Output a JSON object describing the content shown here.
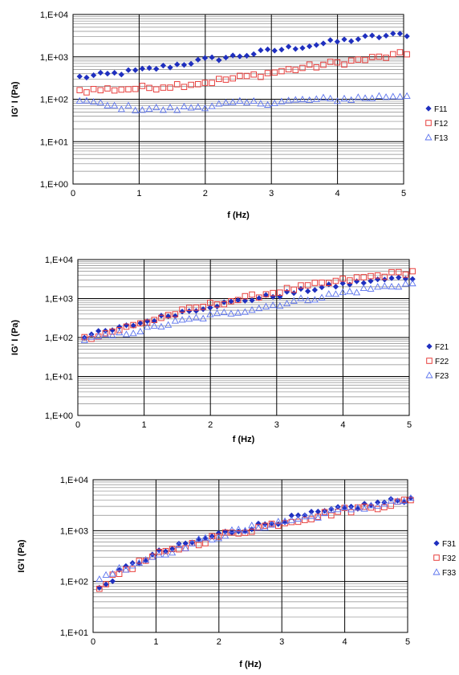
{
  "chart_data": [
    {
      "type": "scatter",
      "xlabel": "f (Hz)",
      "ylabel": "IG' I (Pa)",
      "log_y": true,
      "xlim": [
        0,
        5
      ],
      "ylim": [
        1,
        10000
      ],
      "x_ticks": [
        "0",
        "1",
        "2",
        "3",
        "4",
        "5"
      ],
      "y_ticks": [
        "1,E+00",
        "1,E+01",
        "1,E+02",
        "1,E+03",
        "1,E+04"
      ],
      "grid": true,
      "legend_position": "right",
      "series": [
        {
          "name": "F11",
          "marker": "diamond",
          "color": "#1f2fbf",
          "x": [
            0.1,
            0.5,
            1,
            1.5,
            2,
            2.5,
            3,
            3.5,
            4,
            4.5,
            5
          ],
          "y": [
            330,
            380,
            470,
            620,
            850,
            1050,
            1400,
            1800,
            2300,
            2900,
            3400
          ]
        },
        {
          "name": "F12",
          "marker": "square",
          "color": "#e8403e",
          "x": [
            0.1,
            0.5,
            1,
            1.5,
            2,
            2.5,
            3,
            3.5,
            4,
            4.5,
            5
          ],
          "y": [
            160,
            170,
            180,
            210,
            250,
            320,
            420,
            560,
            720,
            900,
            1150
          ]
        },
        {
          "name": "F13",
          "marker": "triangle",
          "color": "#5a72ee",
          "x": [
            0.1,
            0.5,
            1,
            1.5,
            2,
            2.5,
            3,
            3.5,
            4,
            4.5,
            5
          ],
          "y": [
            100,
            70,
            60,
            58,
            70,
            80,
            85,
            95,
            100,
            110,
            125
          ]
        }
      ]
    },
    {
      "type": "scatter",
      "xlabel": "f (Hz)",
      "ylabel": "IG' I (Pa)",
      "log_y": true,
      "xlim": [
        0,
        5
      ],
      "ylim": [
        1,
        10000
      ],
      "x_ticks": [
        "0",
        "1",
        "2",
        "3",
        "4",
        "5"
      ],
      "y_ticks": [
        "1,E+00",
        "1,E+01",
        "1,E+02",
        "1,E+03",
        "1,E+04"
      ],
      "grid": true,
      "legend_position": "right",
      "series": [
        {
          "name": "F21",
          "marker": "diamond",
          "color": "#1f2fbf",
          "x": [
            0.1,
            0.5,
            1,
            1.5,
            2,
            2.5,
            3,
            3.5,
            4,
            4.5,
            5
          ],
          "y": [
            110,
            150,
            250,
            420,
            650,
            900,
            1200,
            1700,
            2300,
            2900,
            3500
          ]
        },
        {
          "name": "F22",
          "marker": "square",
          "color": "#e8403e",
          "x": [
            0.1,
            0.5,
            1,
            1.5,
            2,
            2.5,
            3,
            3.5,
            4,
            4.5,
            5
          ],
          "y": [
            95,
            140,
            240,
            430,
            700,
            1000,
            1500,
            2100,
            2900,
            3800,
            4800
          ]
        },
        {
          "name": "F23",
          "marker": "triangle",
          "color": "#5a72ee",
          "x": [
            0.1,
            0.5,
            1,
            1.5,
            2,
            2.5,
            3,
            3.5,
            4,
            4.5,
            5
          ],
          "y": [
            90,
            110,
            160,
            250,
            360,
            500,
            700,
            1000,
            1400,
            1900,
            2400
          ]
        }
      ]
    },
    {
      "type": "scatter",
      "xlabel": "f (Hz)",
      "ylabel": "IG'I (Pa)",
      "log_y": true,
      "xlim": [
        0,
        5
      ],
      "ylim": [
        10,
        10000
      ],
      "x_ticks": [
        "0",
        "1",
        "2",
        "3",
        "4",
        "5"
      ],
      "y_ticks": [
        "1,E+01",
        "1,E+02",
        "1,E+03",
        "1,E+04"
      ],
      "grid": true,
      "legend_position": "right",
      "series": [
        {
          "name": "F31",
          "marker": "diamond",
          "color": "#1f2fbf",
          "x": [
            0.1,
            0.5,
            1,
            1.5,
            2,
            2.5,
            3,
            3.5,
            4,
            4.5,
            5
          ],
          "y": [
            70,
            180,
            350,
            550,
            850,
            1150,
            1600,
            2100,
            2700,
            3400,
            4200
          ]
        },
        {
          "name": "F32",
          "marker": "square",
          "color": "#e8403e",
          "x": [
            0.1,
            0.5,
            1,
            1.5,
            2,
            2.5,
            3,
            3.5,
            4,
            4.5,
            5
          ],
          "y": [
            80,
            170,
            320,
            500,
            780,
            1050,
            1450,
            1900,
            2500,
            3000,
            3800
          ]
        },
        {
          "name": "F33",
          "marker": "triangle",
          "color": "#5a72ee",
          "x": [
            0.1,
            0.5,
            1,
            1.5,
            2,
            2.5,
            3,
            3.5,
            4,
            4.5,
            5
          ],
          "y": [
            120,
            190,
            330,
            520,
            800,
            1100,
            1500,
            1950,
            2600,
            3200,
            4000
          ]
        }
      ]
    }
  ]
}
